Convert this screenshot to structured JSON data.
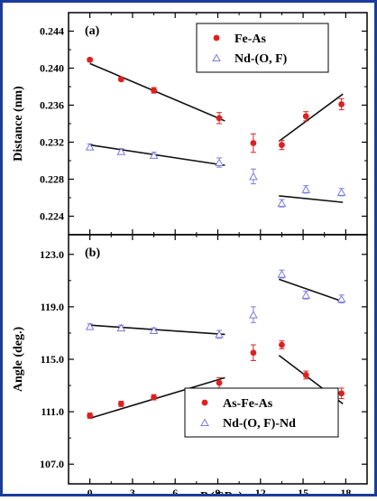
{
  "colors": {
    "red": "#e02020",
    "blue": "#7b7be0",
    "fit": "#111111",
    "border": "#1a3c9c"
  },
  "chart_data": [
    {
      "panel_label": "(a)",
      "type": "scatter",
      "ylabel": "Distance (nm)",
      "ylim": [
        0.222,
        0.246
      ],
      "yticks": [
        "0.224",
        "0.228",
        "0.232",
        "0.236",
        "0.240",
        "0.244"
      ],
      "series": [
        {
          "name": "Fe-As",
          "marker": "filled-circle",
          "color": "#e02020",
          "x": [
            0,
            2.2,
            4.5,
            9.1,
            11.5,
            13.5,
            15.2,
            17.7
          ],
          "y": [
            0.2409,
            0.2388,
            0.2376,
            0.2346,
            0.2319,
            0.2317,
            0.2348,
            0.2361
          ],
          "err": [
            0.0002,
            0.0002,
            0.0003,
            0.0006,
            0.001,
            0.0005,
            0.0005,
            0.0006
          ],
          "fits": [
            {
              "x": [
                0,
                9.5
              ],
              "y": [
                0.2405,
                0.2343
              ]
            },
            {
              "x": [
                13.3,
                17.8
              ],
              "y": [
                0.2321,
                0.2372
              ]
            }
          ]
        },
        {
          "name": "Nd-(O, F)",
          "marker": "open-triangle",
          "color": "#7b7be0",
          "x": [
            0,
            2.2,
            4.5,
            9.1,
            11.5,
            13.5,
            15.2,
            17.7
          ],
          "y": [
            0.2315,
            0.231,
            0.2306,
            0.2298,
            0.2283,
            0.2254,
            0.2269,
            0.2266
          ],
          "err": [
            0.0003,
            0.0003,
            0.0003,
            0.0005,
            0.0008,
            0.0004,
            0.0004,
            0.0004
          ],
          "fits": [
            {
              "x": [
                0,
                9.5
              ],
              "y": [
                0.2317,
                0.2295
              ]
            },
            {
              "x": [
                13.3,
                17.8
              ],
              "y": [
                0.2262,
                0.2255
              ]
            }
          ]
        }
      ],
      "legend_position": "top-right"
    },
    {
      "panel_label": "(b)",
      "type": "scatter",
      "ylabel": "Angle (deg.)",
      "xlabel": "P (GPa)",
      "ylim": [
        105.5,
        124.5
      ],
      "yticks": [
        "107.0",
        "111.0",
        "115.0",
        "119.0",
        "123.0"
      ],
      "series": [
        {
          "name": "As-Fe-As",
          "marker": "filled-circle",
          "color": "#e02020",
          "x": [
            0,
            2.2,
            4.5,
            9.1,
            11.5,
            13.5,
            15.2,
            17.7
          ],
          "y": [
            110.7,
            111.6,
            112.1,
            113.2,
            115.5,
            116.1,
            113.8,
            112.4
          ],
          "err": [
            0.2,
            0.2,
            0.2,
            0.4,
            0.6,
            0.3,
            0.3,
            0.4
          ],
          "fits": [
            {
              "x": [
                0,
                9.5
              ],
              "y": [
                110.5,
                113.6
              ]
            },
            {
              "x": [
                13.3,
                17.8
              ],
              "y": [
                115.3,
                111.6
              ]
            }
          ]
        },
        {
          "name": "Nd-(O, F)-Nd",
          "marker": "open-triangle",
          "color": "#7b7be0",
          "x": [
            0,
            2.2,
            4.5,
            9.1,
            11.5,
            13.5,
            15.2,
            17.7
          ],
          "y": [
            117.5,
            117.4,
            117.2,
            116.9,
            118.4,
            121.5,
            119.9,
            119.6
          ],
          "err": [
            0.2,
            0.2,
            0.2,
            0.3,
            0.6,
            0.3,
            0.3,
            0.3
          ],
          "fits": [
            {
              "x": [
                0,
                9.5
              ],
              "y": [
                117.6,
                116.9
              ]
            },
            {
              "x": [
                13.3,
                17.8
              ],
              "y": [
                121.1,
                119.4
              ]
            }
          ]
        }
      ],
      "legend_position": "bottom-right"
    }
  ],
  "x_axis": {
    "xlim": [
      -1.5,
      19.5
    ],
    "ticks": [
      0,
      3,
      6,
      9,
      12,
      15,
      18
    ],
    "tick_labels": [
      "0",
      "3",
      "6",
      "9",
      "12",
      "15",
      "18"
    ]
  }
}
